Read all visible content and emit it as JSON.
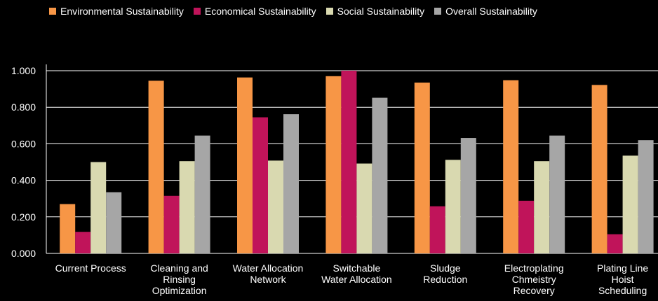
{
  "chart_data": {
    "type": "bar",
    "categories": [
      [
        "Current Process"
      ],
      [
        "Cleaning and",
        "Rinsing",
        "Optimization"
      ],
      [
        "Water Allocation",
        "Network"
      ],
      [
        "Switchable",
        "Water Allocation"
      ],
      [
        "Sludge",
        "Reduction"
      ],
      [
        "Electroplating",
        "Chmeistry",
        "Recovery"
      ],
      [
        "Plating Line",
        "Hoist",
        "Scheduling"
      ]
    ],
    "series": [
      {
        "name": "Environmental Sustainability",
        "color": "#F79646",
        "values": [
          0.27,
          0.945,
          0.963,
          0.97,
          0.935,
          0.948,
          0.922
        ]
      },
      {
        "name": "Economical Sustainability",
        "color": "#C0145A",
        "values": [
          0.118,
          0.315,
          0.745,
          1.0,
          0.258,
          0.288,
          0.105
        ]
      },
      {
        "name": "Social Sustainability",
        "color": "#D9D9B0",
        "values": [
          0.5,
          0.505,
          0.508,
          0.492,
          0.512,
          0.505,
          0.535
        ]
      },
      {
        "name": "Overall Sustainability",
        "color": "#A6A6A6",
        "values": [
          0.335,
          0.645,
          0.762,
          0.852,
          0.632,
          0.645,
          0.62
        ]
      }
    ],
    "ylim": [
      0,
      1.0
    ],
    "yticks": [
      "0.000",
      "0.200",
      "0.400",
      "0.600",
      "0.800",
      "1.000"
    ],
    "grid": true,
    "legend_position": "top"
  }
}
